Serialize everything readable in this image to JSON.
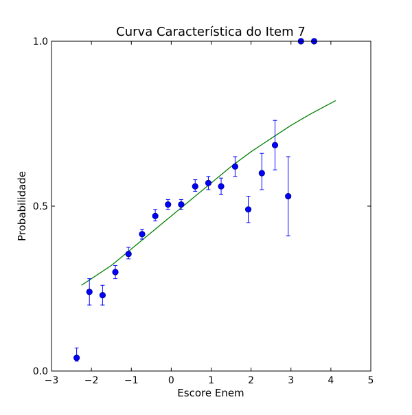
{
  "chart_data": {
    "type": "scatter",
    "title": "Curva Característica do Item 7",
    "xlabel": "Escore Enem",
    "ylabel": "Probabilidade",
    "xlim": [
      -3,
      5
    ],
    "ylim": [
      0,
      1
    ],
    "grid": false,
    "x_ticks": [
      -3,
      -2,
      -1,
      0,
      1,
      2,
      3,
      4,
      5
    ],
    "x_tick_labels": [
      "−3",
      "−2",
      "−1",
      "0",
      "1",
      "2",
      "3",
      "4",
      "5"
    ],
    "y_ticks": [
      0,
      0.5,
      1
    ],
    "y_tick_labels": [
      "0.0",
      "0.5",
      "1.0"
    ],
    "colors": {
      "points": "#0000ff",
      "error_bars": "#0000ff",
      "curve": "#008000",
      "frame": "#000000"
    },
    "series": [
      {
        "type": "scatter_errorbar",
        "points": [
          {
            "x": -2.37,
            "y": 0.04,
            "err_low": 0.03,
            "err_high": 0.07
          },
          {
            "x": -2.05,
            "y": 0.24,
            "err_low": 0.2,
            "err_high": 0.28
          },
          {
            "x": -1.72,
            "y": 0.23,
            "err_low": 0.2,
            "err_high": 0.26
          },
          {
            "x": -1.4,
            "y": 0.3,
            "err_low": 0.28,
            "err_high": 0.32
          },
          {
            "x": -1.07,
            "y": 0.355,
            "err_low": 0.34,
            "err_high": 0.375
          },
          {
            "x": -0.73,
            "y": 0.415,
            "err_low": 0.4,
            "err_high": 0.43
          },
          {
            "x": -0.4,
            "y": 0.47,
            "err_low": 0.455,
            "err_high": 0.49
          },
          {
            "x": -0.08,
            "y": 0.505,
            "err_low": 0.49,
            "err_high": 0.52
          },
          {
            "x": 0.25,
            "y": 0.505,
            "err_low": 0.49,
            "err_high": 0.52
          },
          {
            "x": 0.6,
            "y": 0.56,
            "err_low": 0.545,
            "err_high": 0.58
          },
          {
            "x": 0.93,
            "y": 0.57,
            "err_low": 0.55,
            "err_high": 0.59
          },
          {
            "x": 1.25,
            "y": 0.56,
            "err_low": 0.535,
            "err_high": 0.585
          },
          {
            "x": 1.6,
            "y": 0.62,
            "err_low": 0.59,
            "err_high": 0.65
          },
          {
            "x": 1.93,
            "y": 0.49,
            "err_low": 0.45,
            "err_high": 0.53
          },
          {
            "x": 2.27,
            "y": 0.6,
            "err_low": 0.55,
            "err_high": 0.66
          },
          {
            "x": 2.6,
            "y": 0.685,
            "err_low": 0.61,
            "err_high": 0.76
          },
          {
            "x": 2.93,
            "y": 0.53,
            "err_low": 0.41,
            "err_high": 0.65
          },
          {
            "x": 3.25,
            "y": 1.0,
            "err_low": 1.0,
            "err_high": 1.0
          },
          {
            "x": 3.58,
            "y": 1.0,
            "err_low": 1.0,
            "err_high": 1.0
          }
        ]
      },
      {
        "type": "line",
        "x": [
          -2.25,
          -2.0,
          -1.5,
          -1.0,
          -0.5,
          0.0,
          0.5,
          1.0,
          1.5,
          2.0,
          2.5,
          3.0,
          3.5,
          4.12
        ],
        "y": [
          0.26,
          0.28,
          0.32,
          0.37,
          0.42,
          0.47,
          0.52,
          0.57,
          0.62,
          0.665,
          0.705,
          0.745,
          0.78,
          0.82
        ]
      }
    ]
  }
}
